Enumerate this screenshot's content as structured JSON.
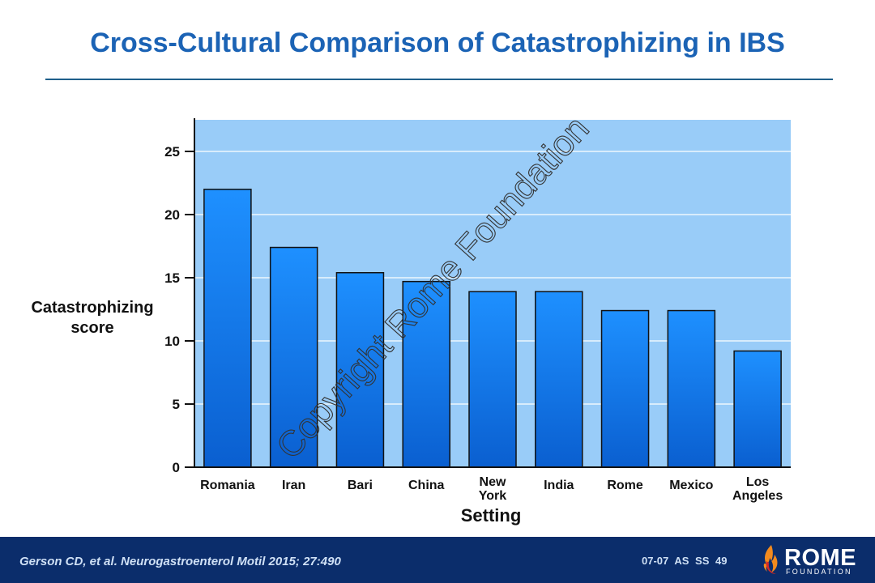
{
  "title": "Cross-Cultural Comparison of Catastrophizing in IBS",
  "watermark": "Copyright Rome Foundation",
  "chart_data": {
    "type": "bar",
    "categories": [
      "Romania",
      "Iran",
      "Bari",
      "China",
      "New York",
      "India",
      "Rome",
      "Mexico",
      "Los Angeles"
    ],
    "values": [
      22.0,
      17.4,
      15.4,
      14.7,
      13.9,
      13.9,
      12.4,
      12.4,
      9.2
    ],
    "xlabel": "Setting",
    "ylabel": "Catastrophizing score",
    "yticks": [
      0,
      5,
      10,
      15,
      20,
      25
    ],
    "ylim": [
      0,
      27.5
    ],
    "grid": true,
    "colors": {
      "plot_background": "#99ccf8",
      "bar_top": "#1e90ff",
      "bar_bottom": "#0a5fd0",
      "gridline": "#ffffff"
    }
  },
  "footer": {
    "citation": "Gerson CD, et al.  Neurogastroenterol Motil 2015;  27:490",
    "code": "07-07  AS  SS 49",
    "logo_text": "ROME",
    "logo_subtext": "FOUNDATION",
    "logo_icon": "flame-icon"
  }
}
